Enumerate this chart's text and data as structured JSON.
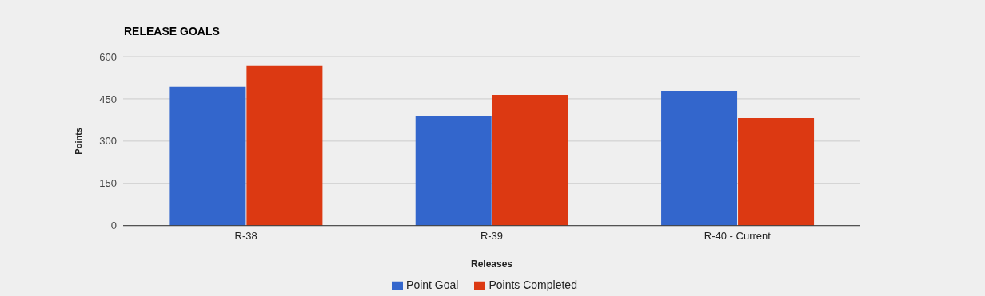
{
  "chart_data": {
    "type": "bar",
    "title": "RELEASE GOALS",
    "xlabel": "Releases",
    "ylabel": "Points",
    "categories": [
      "R-38",
      "R-39",
      "R-40 - Current"
    ],
    "series": [
      {
        "name": "Point Goal",
        "color": "#3366cc",
        "values": [
          493,
          388,
          478
        ]
      },
      {
        "name": "Points Completed",
        "color": "#dc3912",
        "values": [
          567,
          464,
          382
        ]
      }
    ],
    "ylim": [
      0,
      600
    ],
    "yticks": [
      0,
      150,
      300,
      450,
      600
    ],
    "grid": "y",
    "legend": "bottom"
  }
}
